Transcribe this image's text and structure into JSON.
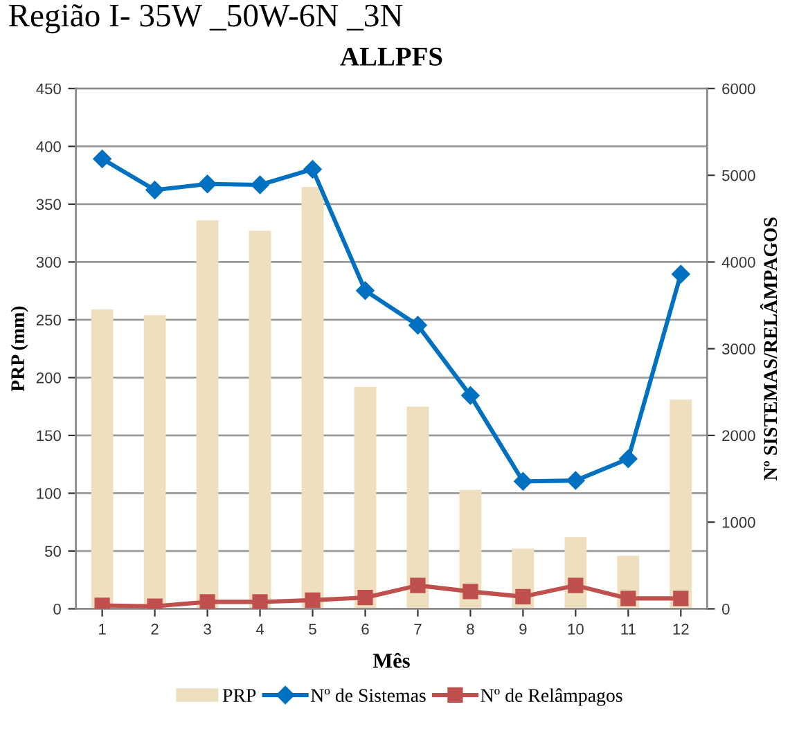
{
  "chart_data": {
    "type": "bar",
    "title": "ALLPFS",
    "subtitle": "Região I- 35W _50W-6N _3N",
    "xlabel": "Mês",
    "ylabel": "PRP (mm)",
    "y2label": "Nº SISTEMAS/RELÂMPAGOS",
    "categories": [
      "1",
      "2",
      "3",
      "4",
      "5",
      "6",
      "7",
      "8",
      "9",
      "10",
      "11",
      "12"
    ],
    "series": [
      {
        "name": "PRP",
        "color": "#eee0bf",
        "values": [
          259,
          254,
          336,
          327,
          365,
          192,
          175,
          103,
          52,
          62,
          46,
          181
        ]
      },
      {
        "name": "Nº de Sistemas",
        "type": "line",
        "axis": "y2",
        "marker": "diamond",
        "color": "#0070c0",
        "values": [
          5190,
          4830,
          4900,
          4890,
          5070,
          3670,
          3270,
          2460,
          1470,
          1480,
          1730,
          3860
        ]
      },
      {
        "name": "Nº de Relâmpagos",
        "type": "line",
        "axis": "y2",
        "marker": "square",
        "color": "#c0504d",
        "values": [
          40,
          30,
          80,
          80,
          100,
          130,
          270,
          200,
          140,
          270,
          120,
          120
        ]
      }
    ],
    "ylim": [
      0,
      450
    ],
    "yticks": [
      0,
      50,
      100,
      150,
      200,
      250,
      300,
      350,
      400,
      450
    ],
    "y2lim": [
      0,
      6000
    ],
    "y2ticks": [
      0,
      1000,
      2000,
      3000,
      4000,
      5000,
      6000
    ],
    "grid": "y",
    "legend": "bottom",
    "line_style": "solid"
  }
}
